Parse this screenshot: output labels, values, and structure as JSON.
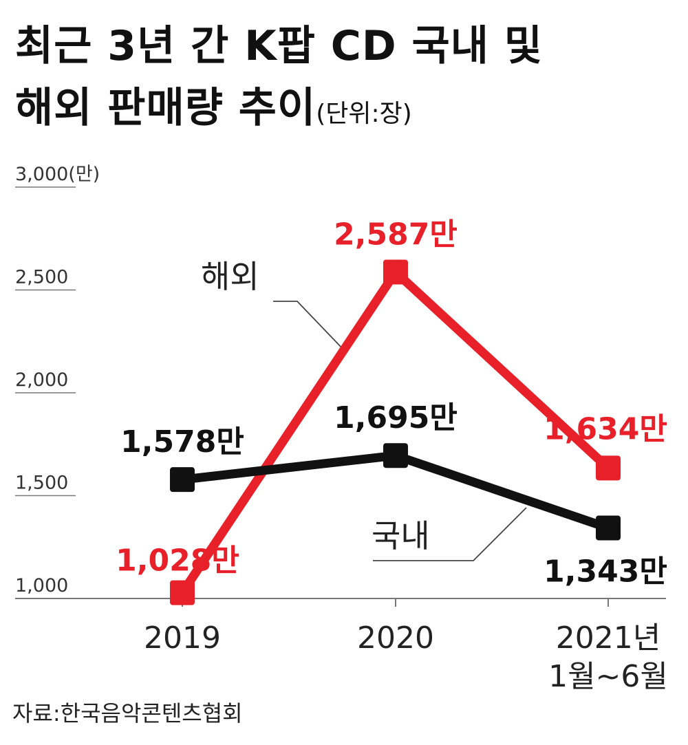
{
  "title": {
    "line1": "최근 3년 간 K팝 CD 국내 및",
    "line2": "해외 판매량 추이",
    "unit": "(단위:장)"
  },
  "source": "자료:한국음악콘텐츠협회",
  "colors": {
    "overseas": "#e8202a",
    "domestic": "#111111",
    "axis": "#555555"
  },
  "chart_data": {
    "type": "line",
    "title": "최근 3년 간 K팝 CD 국내 및 해외 판매량 추이",
    "unit_label": "(단위:장)",
    "categories": [
      "2019",
      "2020",
      "2021년 1월~6월"
    ],
    "category_labels": [
      [
        "2019"
      ],
      [
        "2020"
      ],
      [
        "2021년",
        "1월~6월"
      ]
    ],
    "ylim": [
      1000,
      3000
    ],
    "yticks": [
      1000,
      1500,
      2000,
      2500,
      3000
    ],
    "ytick_labels": [
      "1,000",
      "1,500",
      "2,000",
      "2,500",
      "3,000(만)"
    ],
    "series": [
      {
        "name": "해외",
        "values": [
          1028,
          2587,
          1634
        ],
        "labels": [
          "1,028만",
          "2,587만",
          "1,634만"
        ]
      },
      {
        "name": "국내",
        "values": [
          1578,
          1695,
          1343
        ],
        "labels": [
          "1,578만",
          "1,695만",
          "1,343만"
        ]
      }
    ]
  }
}
